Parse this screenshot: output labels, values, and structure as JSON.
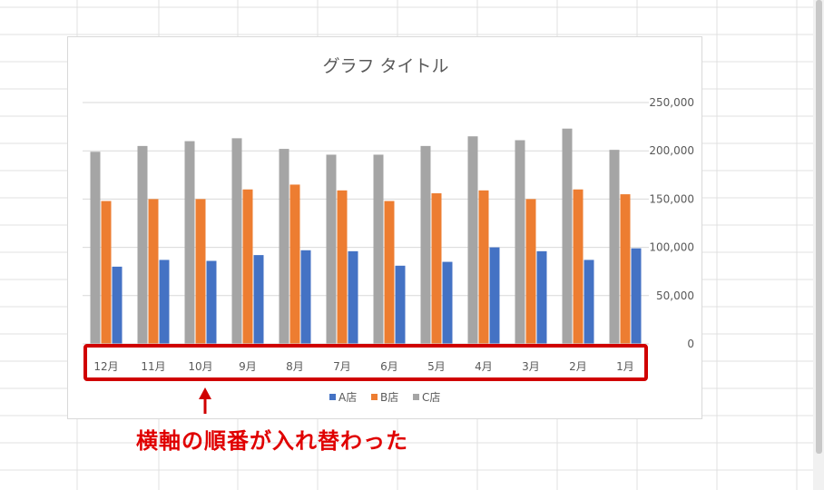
{
  "annotation": {
    "text": "横軸の順番が入れ替わった"
  },
  "colors": {
    "series_a": "#4472c4",
    "series_b": "#ed7d31",
    "series_c": "#a5a5a5",
    "highlight": "#d00000",
    "annotation": "#e00000"
  },
  "chart_data": {
    "type": "bar",
    "title": "グラフ タイトル",
    "xlabel": "",
    "ylabel": "",
    "categories": [
      "12月",
      "11月",
      "10月",
      "9月",
      "8月",
      "7月",
      "6月",
      "5月",
      "4月",
      "3月",
      "2月",
      "1月"
    ],
    "series": [
      {
        "name": "A店",
        "values": [
          80000,
          87000,
          86000,
          92000,
          97000,
          96000,
          81000,
          85000,
          100000,
          96000,
          87000,
          99000
        ]
      },
      {
        "name": "B店",
        "values": [
          148000,
          150000,
          150000,
          160000,
          165000,
          159000,
          148000,
          156000,
          159000,
          150000,
          160000,
          155000
        ]
      },
      {
        "name": "C店",
        "values": [
          199000,
          205000,
          210000,
          213000,
          202000,
          196000,
          196000,
          205000,
          215000,
          211000,
          223000,
          201000
        ]
      }
    ],
    "ylim": [
      0,
      250000
    ],
    "yticks": [
      "0",
      "50,000",
      "100,000",
      "150,000",
      "200,000",
      "250,000"
    ],
    "y_axis_side": "right",
    "x_axis_reversed": true,
    "grid": true,
    "legend_position": "bottom"
  }
}
